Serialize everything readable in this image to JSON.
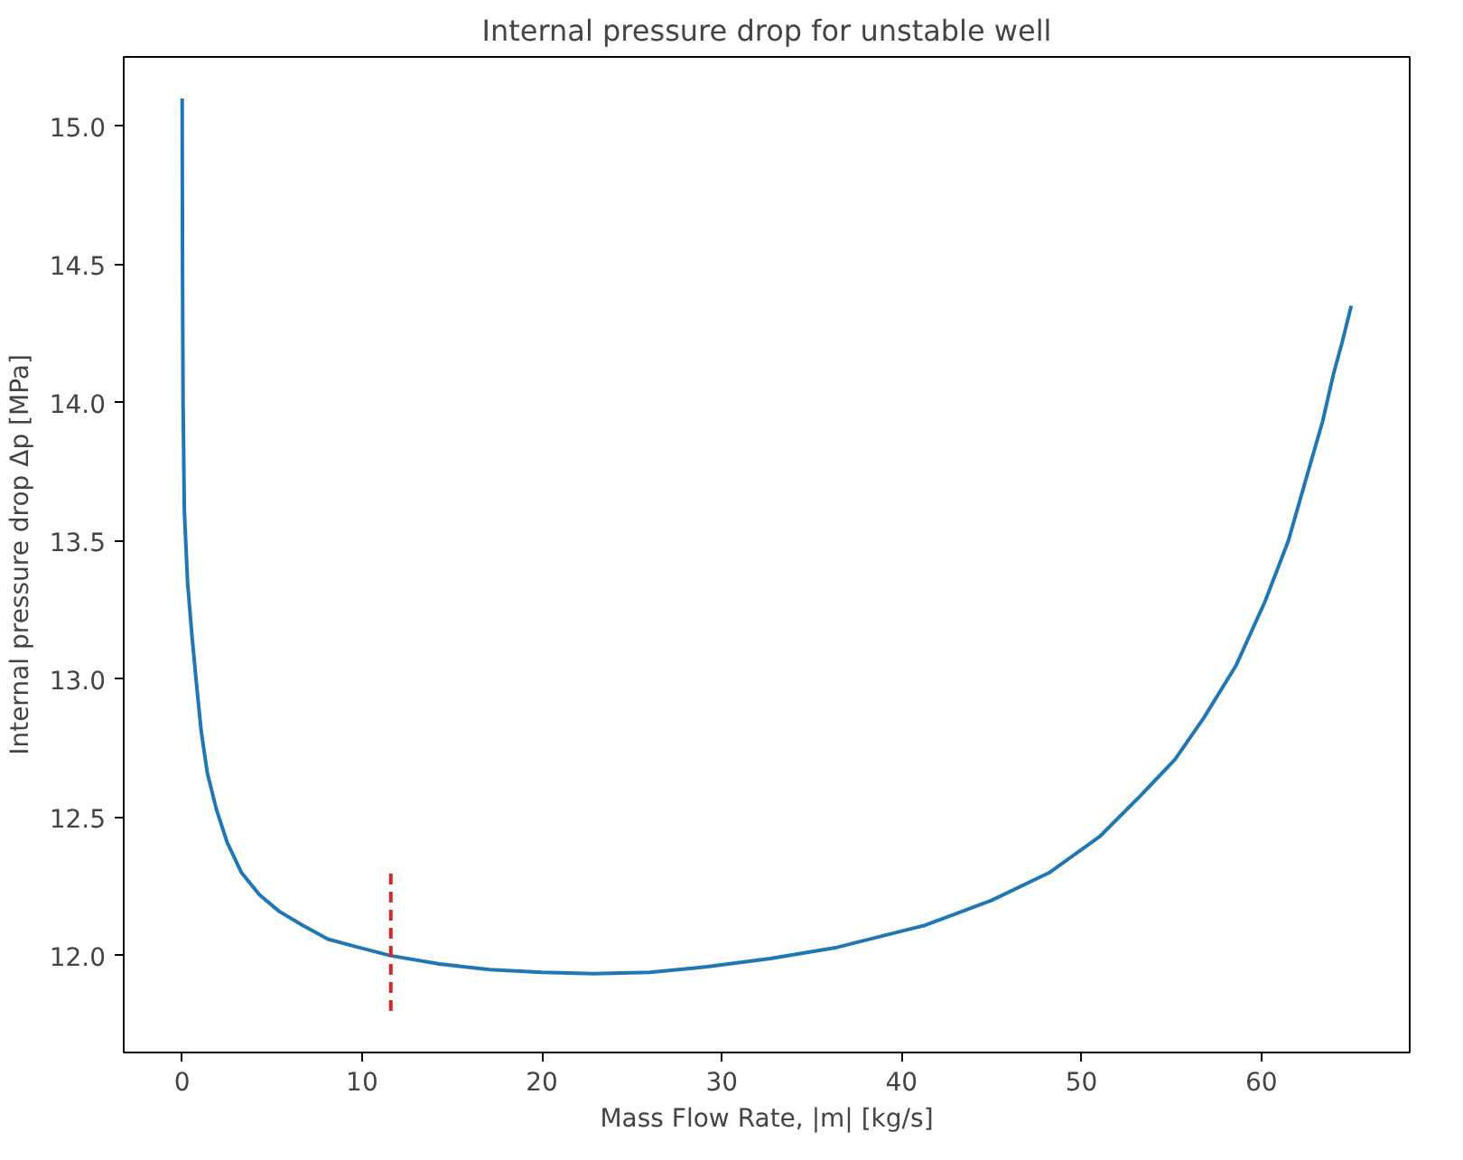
{
  "chart_data": {
    "type": "line",
    "title": "Internal pressure drop for unstable well",
    "xlabel": "Mass Flow Rate, |m| [kg/s]",
    "ylabel": "Internal pressure drop Δp [MPa]",
    "series": [
      {
        "color": "#1f77b4",
        "x": [
          0,
          0.02,
          0.05,
          0.12,
          0.3,
          0.54,
          0.8,
          1.06,
          1.4,
          1.9,
          2.5,
          3.3,
          4.3,
          5.4,
          6.7,
          8.1,
          9.8,
          11.6,
          14.3,
          17.1,
          20,
          22.9,
          26,
          29.2,
          32.7,
          36.4,
          41.3,
          45,
          48.2,
          51,
          53.3,
          55.2,
          56.8,
          58.6,
          60.2,
          61.5,
          62.6,
          63.4,
          64.0,
          64.5,
          65
        ],
        "values": [
          15.1,
          14.45,
          14.0,
          13.61,
          13.35,
          13.16,
          12.98,
          12.81,
          12.66,
          12.53,
          12.41,
          12.3,
          12.22,
          12.16,
          12.11,
          12.06,
          12.03,
          12.0,
          11.97,
          11.95,
          11.94,
          11.935,
          11.94,
          11.96,
          11.99,
          12.03,
          12.11,
          12.2,
          12.3,
          12.43,
          12.58,
          12.71,
          12.86,
          13.05,
          13.28,
          13.5,
          13.75,
          13.93,
          14.1,
          14.22,
          14.35
        ]
      },
      {
        "color": "#d62728",
        "line_style": "dashed",
        "x": [
          11.6,
          11.6
        ],
        "values": [
          11.8,
          12.3
        ]
      }
    ],
    "xlim": [
      -3.25,
      68.25
    ],
    "ylim": [
      11.65,
      15.25
    ],
    "xticks": [
      0,
      10,
      20,
      30,
      40,
      50,
      60
    ],
    "yticks": [
      {
        "value": 12,
        "label": "12.0"
      },
      {
        "value": 12.5,
        "label": "12.5"
      },
      {
        "value": 13,
        "label": "13.0"
      },
      {
        "value": 13.5,
        "label": "13.5"
      },
      {
        "value": 14,
        "label": "14.0"
      },
      {
        "value": 14.5,
        "label": "14.5"
      },
      {
        "value": 15,
        "label": "15.0"
      }
    ],
    "grid": false
  }
}
